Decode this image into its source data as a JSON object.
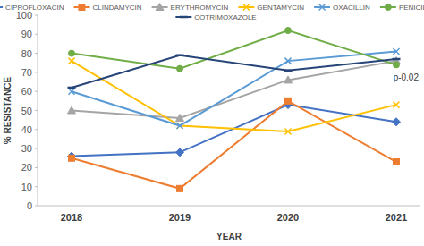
{
  "chart_data": {
    "type": "line",
    "x_label": "YEAR",
    "y_label": "% RESISTANCE",
    "annotation": "p-0.02",
    "categories": [
      "2018",
      "2019",
      "2020",
      "2021"
    ],
    "ylim": [
      0,
      100
    ],
    "yticks": [
      0,
      10,
      20,
      30,
      40,
      50,
      60,
      70,
      80,
      90,
      100
    ],
    "grid": false,
    "legend": "top",
    "series": [
      {
        "name": "CIPROFLOXACIN",
        "color": "#4472c4",
        "marker": "diamond",
        "values": [
          26,
          28,
          53,
          44
        ]
      },
      {
        "name": "CLINDAMYCIN",
        "color": "#ed7d31",
        "marker": "square",
        "values": [
          25,
          9,
          55,
          23
        ]
      },
      {
        "name": "ERYTHROMYCIN",
        "color": "#a5a5a5",
        "marker": "triangle",
        "values": [
          50,
          46,
          66,
          76
        ]
      },
      {
        "name": "GENTAMYCIN",
        "color": "#ffc000",
        "marker": "x",
        "values": [
          76,
          42,
          39,
          53
        ]
      },
      {
        "name": "OXACILLIN",
        "color": "#5b9bd5",
        "marker": "x",
        "values": [
          60,
          42,
          76,
          81
        ]
      },
      {
        "name": "PENICILLIN G",
        "color": "#70ad47",
        "marker": "circle",
        "values": [
          80,
          72,
          92,
          74
        ]
      },
      {
        "name": "COTRIMOXAZOLE",
        "color": "#264478",
        "marker": "dash",
        "values": [
          62,
          79,
          71,
          77
        ]
      }
    ]
  }
}
